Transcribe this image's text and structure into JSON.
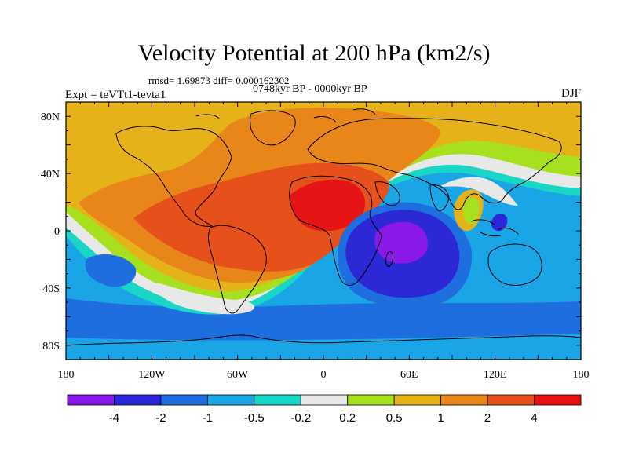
{
  "map": {
    "title": "Velocity Potential at 200 hPa (km2/s)",
    "stats": "rmsd= 1.69873  diff= 0.000162302",
    "period": "0748kyr BP - 0000kyr BP",
    "experiment": "Expt = teVTt1-tevta1",
    "season": "DJF",
    "lon_ticks": [
      "180",
      "120W",
      "60W",
      "0",
      "60E",
      "120E",
      "180"
    ],
    "lat_ticks": [
      "80N",
      "40N",
      "0",
      "40S",
      "80S"
    ],
    "lat_tick_values": [
      80,
      40,
      0,
      -40,
      -80
    ],
    "lon_range": [
      -180,
      180
    ],
    "lat_range": [
      -90,
      90
    ]
  },
  "colorbar": {
    "colors": [
      "#8a18e6",
      "#2c28d6",
      "#1e6ee0",
      "#1aa6e6",
      "#1ad6c6",
      "#e8e8e8",
      "#a6e01e",
      "#e6b21a",
      "#e8861a",
      "#e6501a",
      "#e61414"
    ],
    "labels": [
      "-4",
      "-2",
      "-1",
      "-0.5",
      "-0.2",
      "0.2",
      "0.5",
      "1",
      "2",
      "4"
    ]
  }
}
